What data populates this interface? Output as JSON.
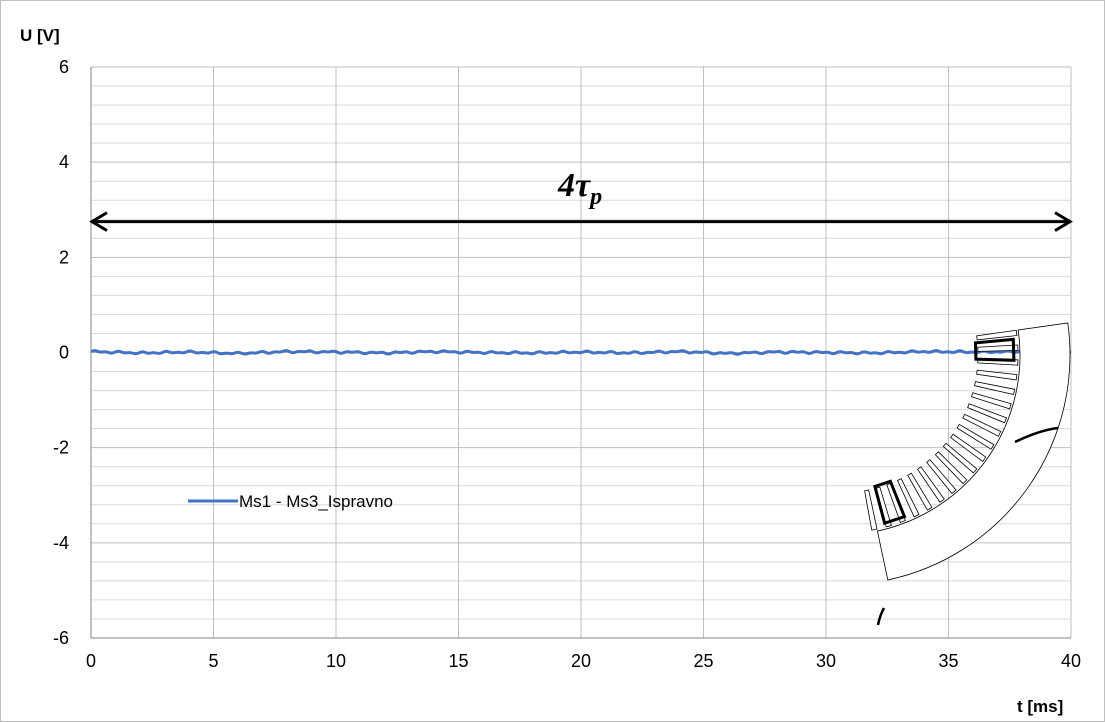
{
  "chart_data": {
    "type": "line",
    "ylabel": "U [V]",
    "xlabel": "t [ms]",
    "xlim": [
      0,
      40
    ],
    "ylim": [
      -6,
      6
    ],
    "x_ticks": [
      "0",
      "5",
      "10",
      "15",
      "20",
      "25",
      "30",
      "35",
      "40"
    ],
    "y_ticks": [
      "-6",
      "-4",
      "-2",
      "0",
      "2",
      "4",
      "6"
    ],
    "grid": true,
    "legend_position": "left-middle",
    "series": [
      {
        "name": "Ms1 - Ms3_Ispravno",
        "color": "#4472c4",
        "x": [
          0,
          2,
          4,
          6,
          8,
          10,
          12,
          14,
          16,
          18,
          20,
          22,
          24,
          26,
          28,
          30,
          32,
          34,
          36,
          38,
          40
        ],
        "y": [
          0.02,
          -0.01,
          0.01,
          -0.02,
          0.02,
          0.01,
          -0.01,
          0.02,
          0.0,
          -0.01,
          0.01,
          -0.01,
          0.02,
          -0.02,
          0.01,
          0.0,
          -0.01,
          0.02,
          0.01,
          0.02,
          0.0
        ]
      }
    ],
    "annotations": [
      {
        "text_main": "4τ",
        "text_sub": "p",
        "arrow_from_x": 0,
        "arrow_to_x": 40,
        "arrow_y": 2.75,
        "type": "double-arrow"
      }
    ]
  },
  "image": {
    "name": "stator-core-illustration"
  },
  "colors": {
    "series": "#4472c4",
    "grid": "#bfbfbf",
    "minor_grid": "#d9d9d9",
    "axis": "#868686"
  }
}
